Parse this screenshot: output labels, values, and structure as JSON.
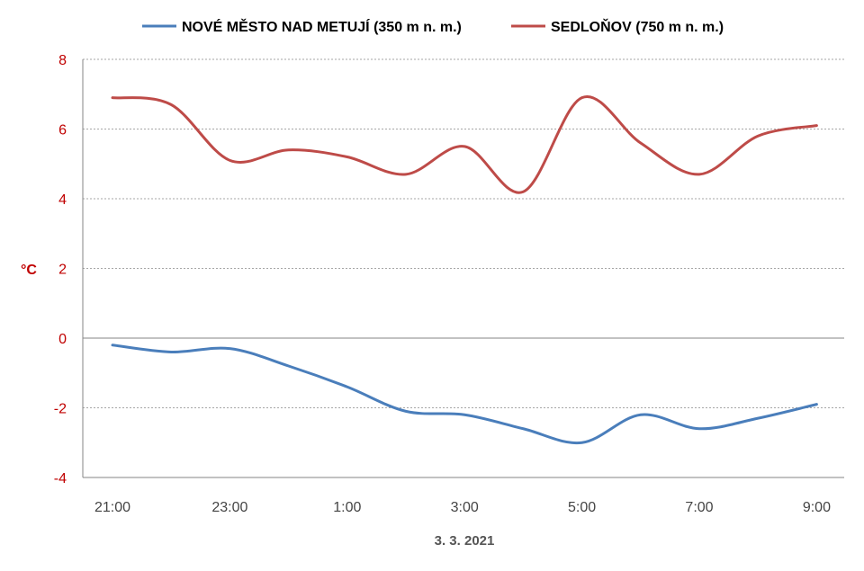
{
  "chart_data": {
    "type": "line",
    "title": "",
    "xlabel": "3. 3. 2021",
    "ylabel": "°C",
    "ylim": [
      -4,
      8
    ],
    "yticks": [
      -4,
      -2,
      0,
      2,
      4,
      6,
      8
    ],
    "ytick_labels": [
      "-4",
      "-2",
      "0",
      "2",
      "4",
      "6",
      "8"
    ],
    "x": [
      "21:00",
      "22:00",
      "23:00",
      "0:00",
      "1:00",
      "2:00",
      "3:00",
      "4:00",
      "5:00",
      "6:00",
      "7:00",
      "8:00",
      "9:00"
    ],
    "xtick_labels": [
      "21:00",
      "23:00",
      "1:00",
      "3:00",
      "5:00",
      "7:00",
      "9:00"
    ],
    "grid": true,
    "legend": "top",
    "series": [
      {
        "name": "NOVÉ MĚSTO NAD METUJÍ (350 m n. m.)",
        "color": "#4a7ebb",
        "values": [
          -0.2,
          -0.4,
          -0.3,
          -0.8,
          -1.4,
          -2.1,
          -2.2,
          -2.6,
          -3.0,
          -2.2,
          -2.6,
          -2.3,
          -1.9
        ]
      },
      {
        "name": "SEDLOŇOV (750 m n. m.)",
        "color": "#be4b48",
        "values": [
          6.9,
          6.7,
          5.1,
          5.4,
          5.2,
          4.7,
          5.5,
          4.2,
          6.9,
          5.6,
          4.7,
          5.8,
          6.1
        ]
      }
    ]
  }
}
